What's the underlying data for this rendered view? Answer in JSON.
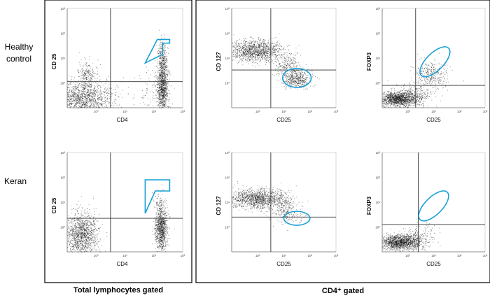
{
  "figure": {
    "row_labels": [
      "Healthy\ncontrol",
      "Keran"
    ],
    "captions": {
      "left": "Total lymphocytes gated",
      "right": "CD4⁺ gated"
    }
  },
  "chart_data": [
    {
      "type": "scatter",
      "id": "healthy-total",
      "xlabel": "CD4",
      "ylabel": "CD 25",
      "scale": "log",
      "xlim_decades": [
        -1,
        3
      ],
      "ylim_decades": [
        -1,
        3
      ],
      "tick_labels": [
        "10⁰",
        "10¹",
        "10²",
        "10³"
      ],
      "quadrant": {
        "x": 0.5,
        "y": 0.05
      },
      "gate": {
        "shape": "polygon",
        "color": "#1aa0d6",
        "points": [
          [
            1.7,
            0.8
          ],
          [
            2.12,
            1.75
          ],
          [
            2.55,
            1.75
          ],
          [
            2.55,
            1.6
          ],
          [
            2.3,
            1.6
          ],
          [
            2.3,
            1.15
          ]
        ]
      },
      "populations": [
        {
          "cx": -0.5,
          "cy": -0.6,
          "sx": 0.55,
          "sy": 0.33,
          "n": 1400
        },
        {
          "cx": -0.3,
          "cy": 0.25,
          "sx": 0.18,
          "sy": 0.3,
          "n": 250
        },
        {
          "cx": 2.3,
          "cy": -0.2,
          "sx": 0.1,
          "sy": 0.5,
          "n": 1000
        },
        {
          "cx": 2.3,
          "cy": 1.0,
          "sx": 0.08,
          "sy": 0.35,
          "n": 300
        },
        {
          "cx": 1.9,
          "cy": -0.5,
          "sx": 0.35,
          "sy": 0.45,
          "n": 90
        }
      ]
    },
    {
      "type": "scatter",
      "id": "healthy-cd4-cd127",
      "xlabel": "CD25",
      "ylabel": "CD 127",
      "scale": "log",
      "xlim_decades": [
        -1,
        3
      ],
      "ylim_decades": [
        -1,
        3
      ],
      "tick_labels": [
        "10⁰",
        "10¹",
        "10²",
        "10³"
      ],
      "quadrant": {
        "x": 0.5,
        "y": 0.52
      },
      "gate": {
        "shape": "ellipse",
        "color": "#1aa0d6",
        "cx": 1.5,
        "cy": 0.2,
        "rx": 0.55,
        "ry": 0.38
      },
      "populations": [
        {
          "cx": -0.1,
          "cy": 1.3,
          "sx": 0.55,
          "sy": 0.22,
          "n": 1300
        },
        {
          "cx": 1.1,
          "cy": 0.7,
          "sx": 0.25,
          "sy": 0.25,
          "n": 250
        },
        {
          "cx": 1.5,
          "cy": 0.15,
          "sx": 0.25,
          "sy": 0.18,
          "n": 450
        }
      ]
    },
    {
      "type": "scatter",
      "id": "healthy-cd4-foxp3",
      "xlabel": "CD25",
      "ylabel": "FOXP3",
      "scale": "log",
      "xlim_decades": [
        -1,
        3
      ],
      "ylim_decades": [
        -1,
        3
      ],
      "tick_labels": [
        "10⁰",
        "10¹",
        "10²",
        "10³"
      ],
      "quadrant": {
        "x": 0.3,
        "y": -0.1
      },
      "gate": {
        "shape": "ellipse",
        "color": "#1aa0d6",
        "cx": 1.05,
        "cy": 0.85,
        "rx": 0.75,
        "ry": 0.35,
        "angle": -45
      },
      "populations": [
        {
          "cx": -0.4,
          "cy": -0.65,
          "sx": 0.35,
          "sy": 0.15,
          "n": 1300
        },
        {
          "cx": 0.2,
          "cy": -0.5,
          "sx": 0.35,
          "sy": 0.22,
          "n": 350
        },
        {
          "cx": 0.9,
          "cy": 0.35,
          "sx": 0.35,
          "sy": 0.3,
          "n": 350
        }
      ]
    },
    {
      "type": "scatter",
      "id": "keran-total",
      "xlabel": "CD4",
      "ylabel": "CD 25",
      "scale": "log",
      "xlim_decades": [
        -1,
        3
      ],
      "ylim_decades": [
        -1,
        3
      ],
      "tick_labels": [
        "10⁰",
        "10¹",
        "10²",
        "10³"
      ],
      "quadrant": {
        "x": 0.5,
        "y": 0.35
      },
      "gate": {
        "shape": "polygon",
        "color": "#1aa0d6",
        "points": [
          [
            1.7,
            0.55
          ],
          [
            2.05,
            1.45
          ],
          [
            2.55,
            1.45
          ],
          [
            2.55,
            1.9
          ],
          [
            1.7,
            1.9
          ]
        ]
      },
      "populations": [
        {
          "cx": -0.5,
          "cy": -0.3,
          "sx": 0.28,
          "sy": 0.45,
          "n": 1300
        },
        {
          "cx": 2.25,
          "cy": -0.05,
          "sx": 0.11,
          "sy": 0.45,
          "n": 1000
        },
        {
          "cx": 2.2,
          "cy": 1.0,
          "sx": 0.12,
          "sy": 0.25,
          "n": 60
        }
      ]
    },
    {
      "type": "scatter",
      "id": "keran-cd4-cd127",
      "xlabel": "CD25",
      "ylabel": "CD 127",
      "scale": "log",
      "xlim_decades": [
        -1,
        3
      ],
      "ylim_decades": [
        -1,
        3
      ],
      "tick_labels": [
        "10⁰",
        "10¹",
        "10²",
        "10³"
      ],
      "quadrant": {
        "x": 0.5,
        "y": 0.4
      },
      "gate": {
        "shape": "ellipse",
        "color": "#1aa0d6",
        "cx": 1.5,
        "cy": 0.35,
        "rx": 0.5,
        "ry": 0.28
      },
      "populations": [
        {
          "cx": 0.0,
          "cy": 1.15,
          "sx": 0.55,
          "sy": 0.2,
          "n": 1300
        },
        {
          "cx": 1.0,
          "cy": 0.7,
          "sx": 0.25,
          "sy": 0.25,
          "n": 250
        },
        {
          "cx": 1.5,
          "cy": 0.35,
          "sx": 0.2,
          "sy": 0.15,
          "n": 25
        }
      ]
    },
    {
      "type": "scatter",
      "id": "keran-cd4-foxp3",
      "xlabel": "CD25",
      "ylabel": "FOXP3",
      "scale": "log",
      "xlim_decades": [
        -1,
        3
      ],
      "ylim_decades": [
        -1,
        3
      ],
      "tick_labels": [
        "10⁰",
        "10¹",
        "10²",
        "10³"
      ],
      "quadrant": {
        "x": 0.4,
        "y": 0.1
      },
      "gate": {
        "shape": "ellipse",
        "color": "#1aa0d6",
        "cx": 1.0,
        "cy": 0.85,
        "rx": 0.75,
        "ry": 0.35,
        "angle": -45
      },
      "populations": [
        {
          "cx": -0.35,
          "cy": -0.6,
          "sx": 0.35,
          "sy": 0.15,
          "n": 1300
        },
        {
          "cx": 0.3,
          "cy": -0.5,
          "sx": 0.3,
          "sy": 0.22,
          "n": 300
        },
        {
          "cx": 0.7,
          "cy": 0.0,
          "sx": 0.25,
          "sy": 0.2,
          "n": 30
        }
      ]
    }
  ]
}
